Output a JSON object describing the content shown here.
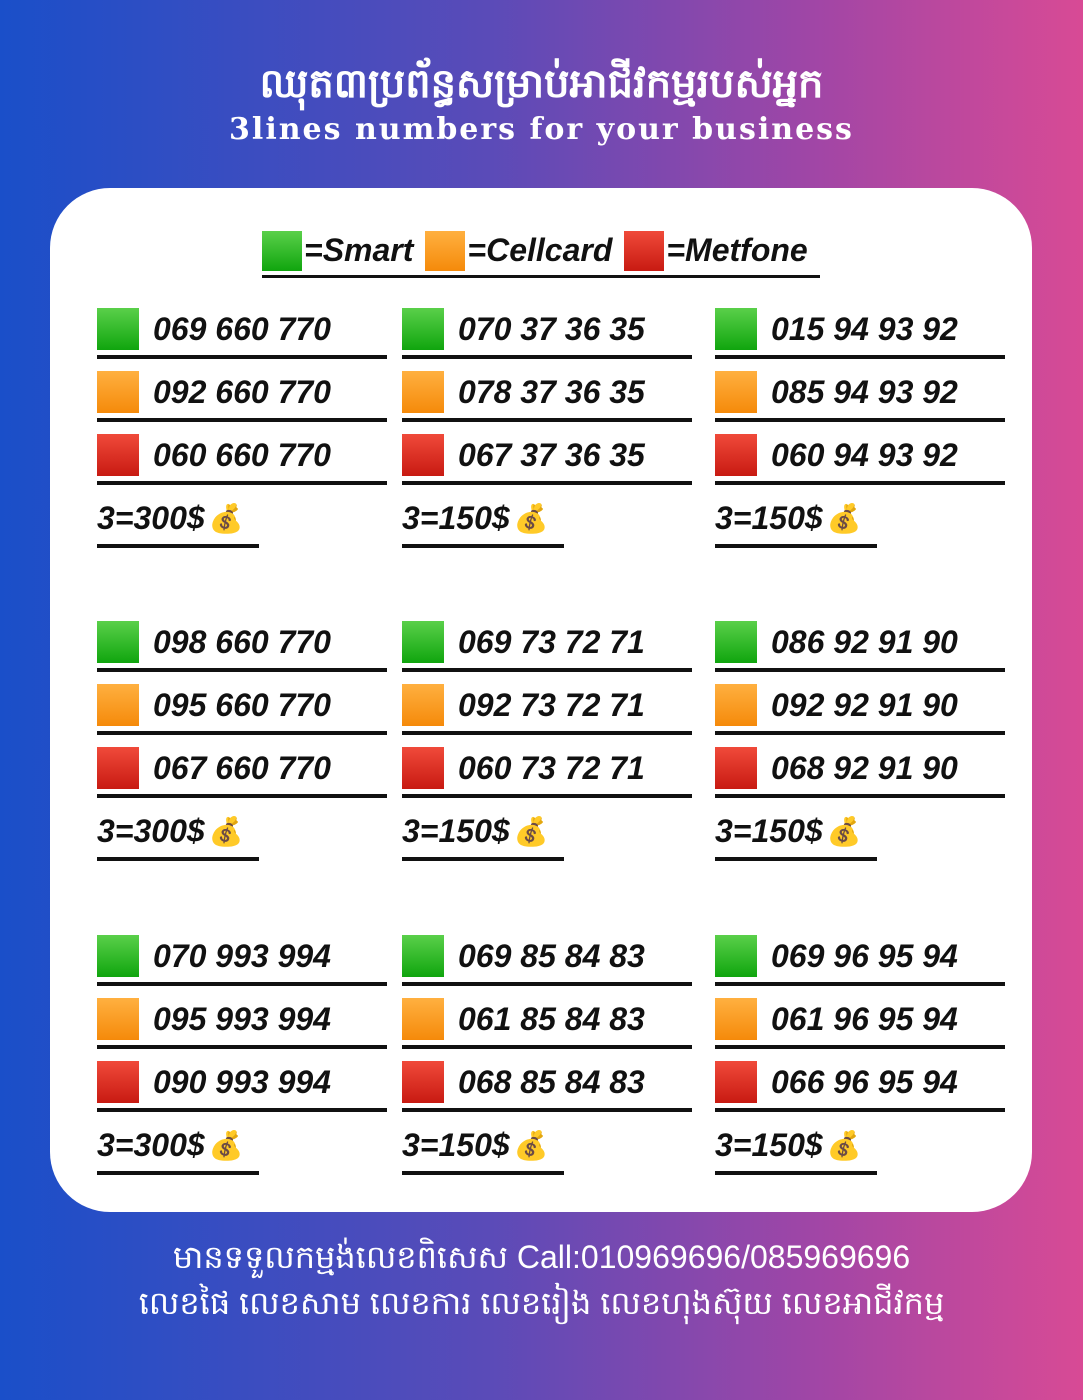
{
  "header": {
    "title_kh": "ឈុត៣ប្រព័ន្ធសម្រាប់អាជីវកម្មរបស់អ្នក",
    "title_en": "3lines numbers for your business"
  },
  "legend": [
    {
      "label": "=Smart",
      "color": "#1aad18"
    },
    {
      "label": "=Cellcard",
      "color": "#f7941d"
    },
    {
      "label": "=Metfone",
      "color": "#d9261c"
    }
  ],
  "groups": [
    {
      "numbers": [
        "069 660 770",
        "092 660 770",
        "060 660 770"
      ],
      "price": "3=300$"
    },
    {
      "numbers": [
        "070 37 36 35",
        "078 37 36 35",
        "067 37 36 35"
      ],
      "price": "3=150$"
    },
    {
      "numbers": [
        "015 94 93 92",
        "085 94 93 92",
        "060 94 93 92"
      ],
      "price": "3=150$"
    },
    {
      "numbers": [
        "098 660 770",
        "095 660 770",
        "067 660 770"
      ],
      "price": "3=300$"
    },
    {
      "numbers": [
        "069 73 72 71",
        "092 73 72 71",
        "060 73 72 71"
      ],
      "price": "3=150$"
    },
    {
      "numbers": [
        "086 92 91 90",
        "092 92 91 90",
        "068 92 91 90"
      ],
      "price": "3=150$"
    },
    {
      "numbers": [
        "070 993 994",
        "095 993 994",
        "090 993 994"
      ],
      "price": "3=300$"
    },
    {
      "numbers": [
        "069 85 84 83",
        "061 85 84 83",
        "068 85 84 83"
      ],
      "price": "3=150$"
    },
    {
      "numbers": [
        "069 96 95 94",
        "061 96 95 94",
        "066 96 95 94"
      ],
      "price": "3=150$"
    }
  ],
  "money_bag_icon": "💰",
  "footer": {
    "line1": "មានទទួលកម្មង់លេខពិសេស Call:010969696/085969696",
    "line2": "លេខផៃ លេខសាម លេខការ លេខរៀង លេខហុងស៊ុយ លេខអាជីវកម្ម"
  }
}
